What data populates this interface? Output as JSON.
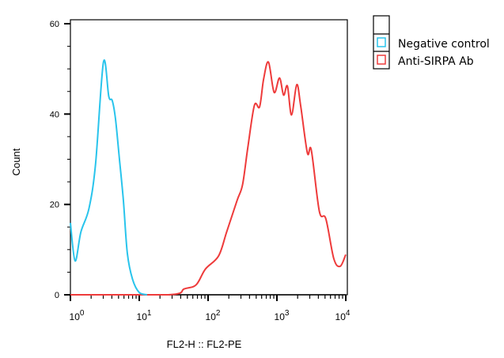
{
  "chart_data": {
    "type": "line",
    "title": "",
    "xlabel": "FL2-H :: FL2-PE",
    "ylabel": "Count",
    "xscale": "log",
    "xlim": [
      1,
      10000
    ],
    "ylim": [
      0,
      60
    ],
    "xticks": [
      {
        "base": "10",
        "exp": "0",
        "value": 1
      },
      {
        "base": "10",
        "exp": "1",
        "value": 10
      },
      {
        "base": "10",
        "exp": "2",
        "value": 100
      },
      {
        "base": "10",
        "exp": "3",
        "value": 1000
      },
      {
        "base": "10",
        "exp": "4",
        "value": 10000
      }
    ],
    "yticks": [
      {
        "label": "0",
        "value": 0
      },
      {
        "label": "20",
        "value": 20
      },
      {
        "label": "40",
        "value": 40
      },
      {
        "label": "60",
        "value": 60
      }
    ],
    "grid": false,
    "legend_position": "outside-top-right",
    "series": [
      {
        "name": "Negative control",
        "color": "#29c4ec",
        "x": [
          1,
          1.17,
          1.42,
          1.86,
          2.32,
          3.02,
          3.61,
          4.05,
          4.51,
          5.14,
          5.88,
          6.71,
          8.0,
          10,
          13
        ],
        "y": [
          15.9,
          7.5,
          13.9,
          19.1,
          29,
          51.5,
          43.9,
          43,
          39,
          30.2,
          20.9,
          9.2,
          3.4,
          0.5,
          0
        ]
      },
      {
        "name": "Anti-SIRPA Ab",
        "color": "#ee3b3b",
        "x": [
          1,
          26.4,
          45,
          67,
          91.6,
          142,
          186,
          264,
          317,
          377,
          470,
          560,
          640,
          754,
          911,
          1090,
          1250,
          1420,
          1630,
          1940,
          2210,
          2770,
          3160,
          4130,
          5140,
          6700,
          8290,
          10000
        ],
        "y": [
          0,
          0,
          1.3,
          2.2,
          5.7,
          8.6,
          13.9,
          20.9,
          24.4,
          32.5,
          41.9,
          41.6,
          47.7,
          51.5,
          44.8,
          48,
          44.2,
          46.2,
          39.8,
          46.5,
          41.9,
          31.4,
          32,
          18.5,
          16.8,
          8,
          6.3,
          8.9
        ]
      }
    ]
  }
}
